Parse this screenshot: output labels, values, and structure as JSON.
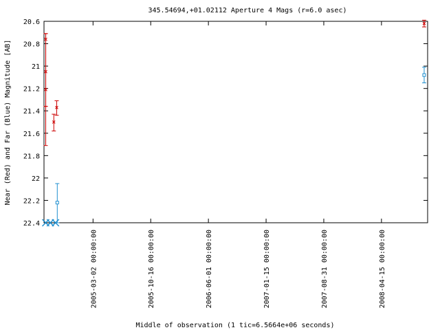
{
  "chart_data": {
    "type": "scatter",
    "title": "345.54694,+01.02112   Aperture 4 Mags (r=6.0 asec)",
    "xlabel": "Middle of observation (1 tic=6.5664e+06 seconds)",
    "ylabel": "Near (Red) and Far (Blue) Magnitude [AB]",
    "ylim": [
      22.4,
      20.6
    ],
    "y_inverted": true,
    "y_ticks": [
      "20.6",
      "20.8",
      "21",
      "21.2",
      "21.4",
      "21.6",
      "21.8",
      "22",
      "22.2",
      "22.4"
    ],
    "x_ticks": [
      "2005-03-02 00:00:00",
      "2005-10-16 00:00:00",
      "2006-06-01 00:00:00",
      "2007-01-15 00:00:00",
      "2007-08-31 00:00:00",
      "2008-04-15 00:00:00"
    ],
    "x_unit_note": "x in tic units; tic 1 = 2005-03-02",
    "xlim": [
      -0.85,
      5.8
    ],
    "series": [
      {
        "name": "Near (Red)",
        "color": "#cc0000",
        "marker": "x",
        "points": [
          {
            "x": -0.82,
            "y": 20.76,
            "err_low": 20.71,
            "err_high": 21.36
          },
          {
            "x": -0.82,
            "y": 21.05,
            "err_low": 20.71,
            "err_high": 21.36
          },
          {
            "x": -0.82,
            "y": 21.21,
            "err_low": 20.71,
            "err_high": 21.71
          },
          {
            "x": -0.68,
            "y": 21.5,
            "err_low": 21.43,
            "err_high": 21.58
          },
          {
            "x": -0.63,
            "y": 21.37,
            "err_low": 21.31,
            "err_high": 21.44
          },
          {
            "x": 5.74,
            "y": 20.62,
            "err_low": 20.59,
            "err_high": 20.65
          }
        ]
      },
      {
        "name": "Far (Blue)",
        "color": "#1f8fcf",
        "marker": "square",
        "points": [
          {
            "x": -0.62,
            "y": 22.22,
            "err_low": 22.05,
            "err_high": 22.4
          },
          {
            "x": 5.74,
            "y": 21.08,
            "err_low": 21.01,
            "err_high": 21.15
          }
        ],
        "limit_points": [
          {
            "x": -0.82,
            "y": 22.4
          },
          {
            "x": -0.74,
            "y": 22.4
          },
          {
            "x": -0.65,
            "y": 22.4
          }
        ]
      }
    ]
  }
}
